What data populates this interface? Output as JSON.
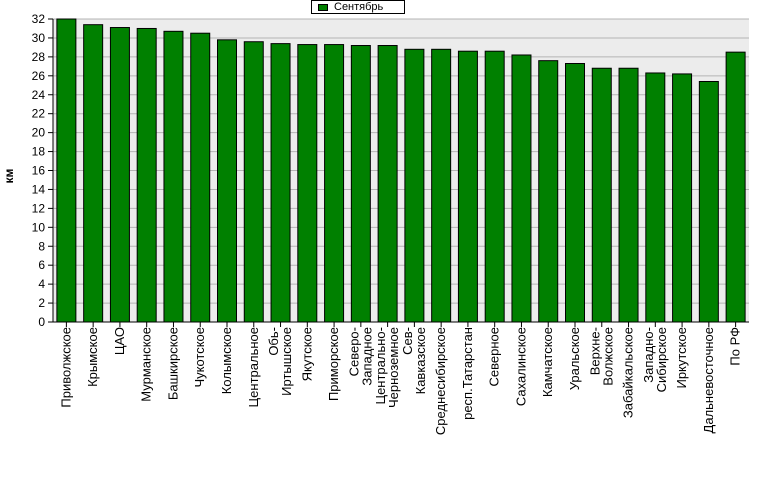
{
  "colors": {
    "bar": "#008000",
    "plot_bg": "#ececec",
    "grid": "#b4b4b4"
  },
  "chart_data": {
    "type": "bar",
    "title": "",
    "xlabel": "",
    "ylabel": "км",
    "ylim": [
      0,
      32
    ],
    "yticks": [
      0,
      2,
      4,
      6,
      8,
      10,
      12,
      14,
      16,
      18,
      20,
      22,
      24,
      26,
      28,
      30,
      32
    ],
    "grid": true,
    "legend_position": "top-center",
    "series": [
      {
        "name": "Сентябрь",
        "color": "#008000"
      }
    ],
    "categories": [
      [
        "Приволжское"
      ],
      [
        "Крымское"
      ],
      [
        "ЦАО"
      ],
      [
        "Мурманское"
      ],
      [
        "Башкирское"
      ],
      [
        "Чукотское"
      ],
      [
        "Колымское"
      ],
      [
        "Центральное"
      ],
      [
        "Обь-",
        "Иртышское"
      ],
      [
        "Якутское"
      ],
      [
        "Приморское"
      ],
      [
        "Северо-",
        "Западное"
      ],
      [
        "Центрально-",
        "Черноземное"
      ],
      [
        "Сев-",
        "Кавказское"
      ],
      [
        "Среднесибирское"
      ],
      [
        "респ.Татарстан"
      ],
      [
        "Северное"
      ],
      [
        "Сахалинское"
      ],
      [
        "Камчатское"
      ],
      [
        "Уральское"
      ],
      [
        "Верхне-",
        "Волжское"
      ],
      [
        "Забайкальское"
      ],
      [
        "Западно-",
        "Сибирское"
      ],
      [
        "Иркутское"
      ],
      [
        "Дальневосточное"
      ],
      [
        "По РФ"
      ]
    ],
    "values": [
      32.0,
      31.4,
      31.1,
      31.0,
      30.7,
      30.5,
      29.8,
      29.6,
      29.4,
      29.3,
      29.3,
      29.2,
      29.2,
      28.8,
      28.8,
      28.6,
      28.6,
      28.2,
      27.6,
      27.3,
      26.8,
      26.8,
      26.3,
      26.2,
      25.4,
      28.5
    ]
  }
}
